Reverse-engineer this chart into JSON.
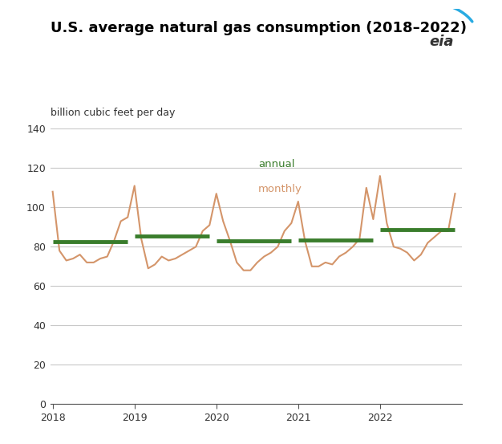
{
  "title": "U.S. average natural gas consumption (2018–2022)",
  "ylabel": "billion cubic feet per day",
  "xlim": [
    2017.97,
    2023.0
  ],
  "ylim": [
    0,
    140
  ],
  "yticks": [
    0,
    20,
    40,
    60,
    80,
    100,
    120,
    140
  ],
  "xticks": [
    2018,
    2019,
    2020,
    2021,
    2022
  ],
  "monthly_color": "#D4956A",
  "annual_color": "#3A7D2C",
  "background_color": "#FFFFFF",
  "grid_color": "#C8C8C8",
  "monthly_data": {
    "dates": [
      2018.0,
      2018.083,
      2018.167,
      2018.25,
      2018.333,
      2018.417,
      2018.5,
      2018.583,
      2018.667,
      2018.75,
      2018.833,
      2018.917,
      2019.0,
      2019.083,
      2019.167,
      2019.25,
      2019.333,
      2019.417,
      2019.5,
      2019.583,
      2019.667,
      2019.75,
      2019.833,
      2019.917,
      2020.0,
      2020.083,
      2020.167,
      2020.25,
      2020.333,
      2020.417,
      2020.5,
      2020.583,
      2020.667,
      2020.75,
      2020.833,
      2020.917,
      2021.0,
      2021.083,
      2021.167,
      2021.25,
      2021.333,
      2021.417,
      2021.5,
      2021.583,
      2021.667,
      2021.75,
      2021.833,
      2021.917,
      2022.0,
      2022.083,
      2022.167,
      2022.25,
      2022.333,
      2022.417,
      2022.5,
      2022.583,
      2022.667,
      2022.75,
      2022.833,
      2022.917
    ],
    "values": [
      108,
      78,
      73,
      74,
      76,
      72,
      72,
      74,
      75,
      83,
      93,
      95,
      111,
      84,
      69,
      71,
      75,
      73,
      74,
      76,
      78,
      80,
      88,
      91,
      107,
      93,
      83,
      72,
      68,
      68,
      72,
      75,
      77,
      80,
      88,
      92,
      103,
      83,
      70,
      70,
      72,
      71,
      75,
      77,
      80,
      84,
      110,
      94,
      116,
      92,
      80,
      79,
      77,
      73,
      76,
      82,
      85,
      88,
      88,
      107
    ]
  },
  "annual_data": [
    {
      "year": 2018,
      "value": 82.5
    },
    {
      "year": 2019,
      "value": 85.5
    },
    {
      "year": 2020,
      "value": 83.0
    },
    {
      "year": 2021,
      "value": 83.5
    },
    {
      "year": 2022,
      "value": 88.5
    }
  ],
  "legend_annual": "annual",
  "legend_monthly": "monthly",
  "title_fontsize": 13,
  "label_fontsize": 9,
  "tick_fontsize": 9
}
